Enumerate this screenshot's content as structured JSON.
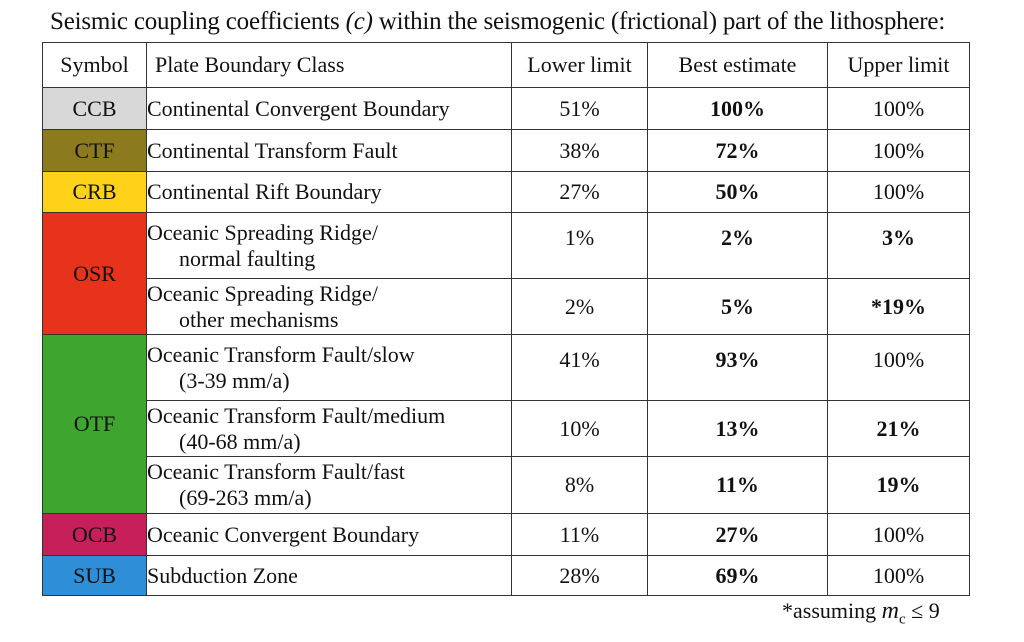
{
  "title": {
    "prefix": "Seismic coupling coefficients ",
    "symbol": "(c)",
    "suffix": " within the seismogenic (frictional) part of the lithosphere:"
  },
  "headers": {
    "symbol": "Symbol",
    "class": "Plate Boundary Class",
    "lower": "Lower limit",
    "best": "Best estimate",
    "upper": "Upper limit"
  },
  "colors": {
    "CCB": "#d8d8d8",
    "CTF": "#8b7a1e",
    "CRB": "#ffd21a",
    "OSR": "#e8331c",
    "OTF": "#3ea52e",
    "OCB": "#c61f5a",
    "SUB": "#2e8fd8"
  },
  "groups": {
    "CCB": "CCB",
    "CTF": "CTF",
    "CRB": "CRB",
    "OSR": "OSR",
    "OTF": "OTF",
    "OCB": "OCB",
    "SUB": "SUB"
  },
  "rows": [
    {
      "line1": "Continental Convergent Boundary",
      "line2": "",
      "lower": "51%",
      "best": "100%",
      "upper": "100%"
    },
    {
      "line1": "Continental Transform Fault",
      "line2": "",
      "lower": "38%",
      "best": "72%",
      "upper": "100%"
    },
    {
      "line1": "Continental Rift Boundary",
      "line2": "",
      "lower": "27%",
      "best": "50%",
      "upper": "100%"
    },
    {
      "line1": "Oceanic Spreading Ridge/",
      "line2": "normal faulting",
      "lower": "1%",
      "best": "2%",
      "upper": "3%"
    },
    {
      "line1": "Oceanic Spreading Ridge/",
      "line2": "other mechanisms",
      "lower": "2%",
      "best": "5%",
      "upper": "*19%"
    },
    {
      "line1": "Oceanic Transform Fault/slow",
      "line2": "(3-39 mm/a)",
      "lower": "41%",
      "best": "93%",
      "upper": "100%"
    },
    {
      "line1": "Oceanic Transform Fault/medium",
      "line2": "(40-68 mm/a)",
      "lower": "10%",
      "best": "13%",
      "upper": "21%"
    },
    {
      "line1": "Oceanic Transform Fault/fast",
      "line2": "(69-263 mm/a)",
      "lower": "8%",
      "best": "11%",
      "upper": "19%"
    },
    {
      "line1": "Oceanic Convergent Boundary",
      "line2": "",
      "lower": "11%",
      "best": "27%",
      "upper": "100%"
    },
    {
      "line1": "Subduction Zone",
      "line2": "",
      "lower": "28%",
      "best": "69%",
      "upper": "100%"
    }
  ],
  "footnote": {
    "prefix": "*assuming ",
    "m": "m",
    "sub": "c",
    "suffix": " ≤ 9"
  }
}
